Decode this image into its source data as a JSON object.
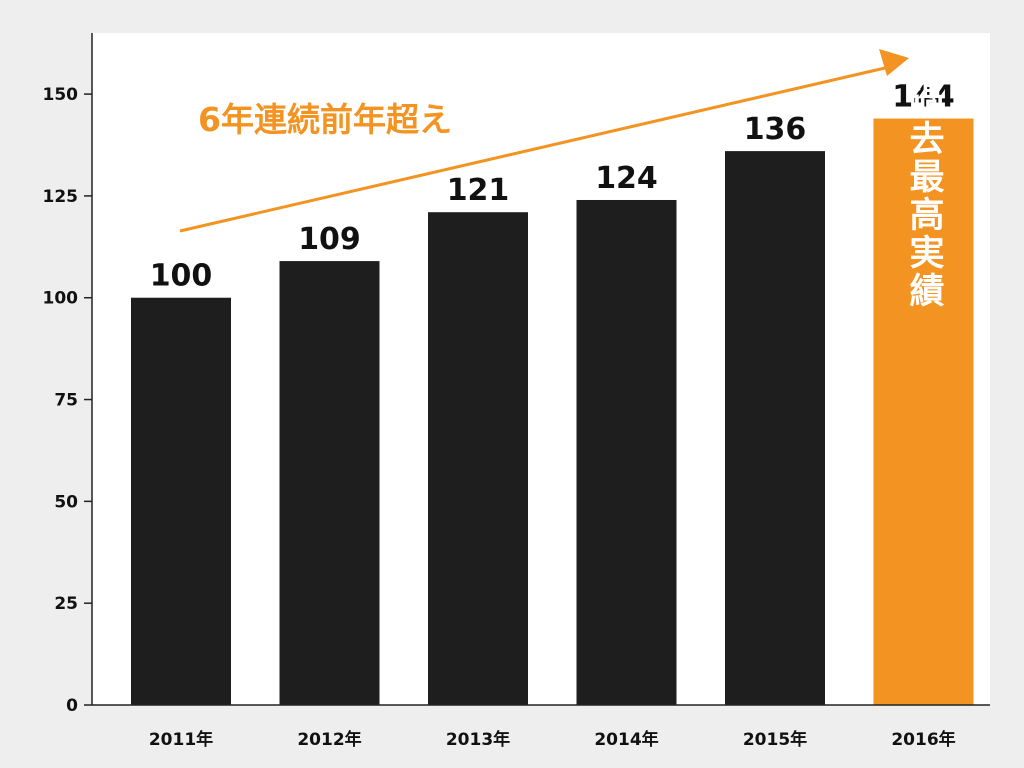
{
  "chart_data": {
    "type": "bar",
    "title": "",
    "xlabel": "",
    "ylabel": "",
    "categories": [
      "2011年",
      "2012年",
      "2013年",
      "2014年",
      "2015年",
      "2016年"
    ],
    "values": [
      100,
      109,
      121,
      124,
      136,
      144
    ],
    "value_labels": [
      "100",
      "109",
      "121",
      "124",
      "136",
      "144"
    ],
    "ylim": [
      0,
      165
    ],
    "yticks": [
      0,
      25,
      50,
      75,
      100,
      125,
      150
    ],
    "grid": false,
    "legend": "none",
    "highlight_index": 5,
    "annotations": {
      "trend_text": "6年連続前年超え",
      "highlight_text": "過去最高実績"
    }
  },
  "colors": {
    "background": "#eeeeee",
    "plot_bg": "#ffffff",
    "bar": "#1e1e1e",
    "highlight": "#f39322",
    "axis": "#222222"
  }
}
